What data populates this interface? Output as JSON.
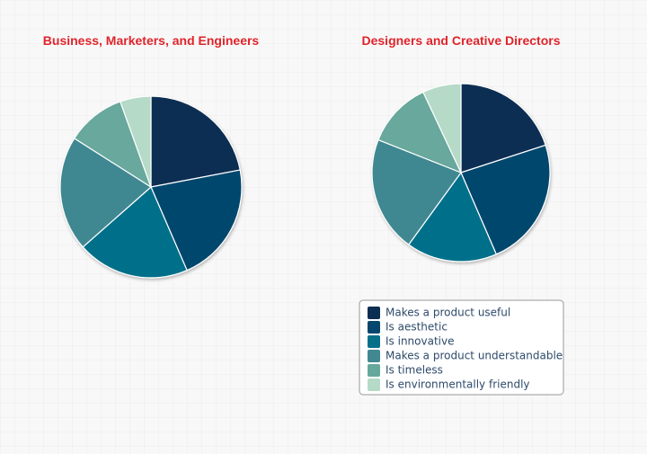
{
  "chart_data": [
    {
      "type": "pie",
      "title": "Business, Marketers, and Engineers",
      "categories": [
        "Makes a product useful",
        "Is aesthetic",
        "Is innovative",
        "Makes a product understandable",
        "Is timeless",
        "Is environmentally friendly"
      ],
      "values": [
        22,
        21.5,
        20,
        20.5,
        10.5,
        5.5
      ],
      "colors": [
        "#0b2e52",
        "#05466e",
        "#06708a",
        "#418891",
        "#67a89d",
        "#b5dac8"
      ]
    },
    {
      "type": "pie",
      "title": "Designers and Creative Directors",
      "categories": [
        "Makes a product useful",
        "Is aesthetic",
        "Is innovative",
        "Makes a product understandable",
        "Is timeless",
        "Is environmentally friendly"
      ],
      "values": [
        20,
        23.5,
        16.5,
        21,
        12,
        7
      ],
      "colors": [
        "#0b2e52",
        "#05466e",
        "#06708a",
        "#418891",
        "#67a89d",
        "#b5dac8"
      ]
    }
  ]
}
